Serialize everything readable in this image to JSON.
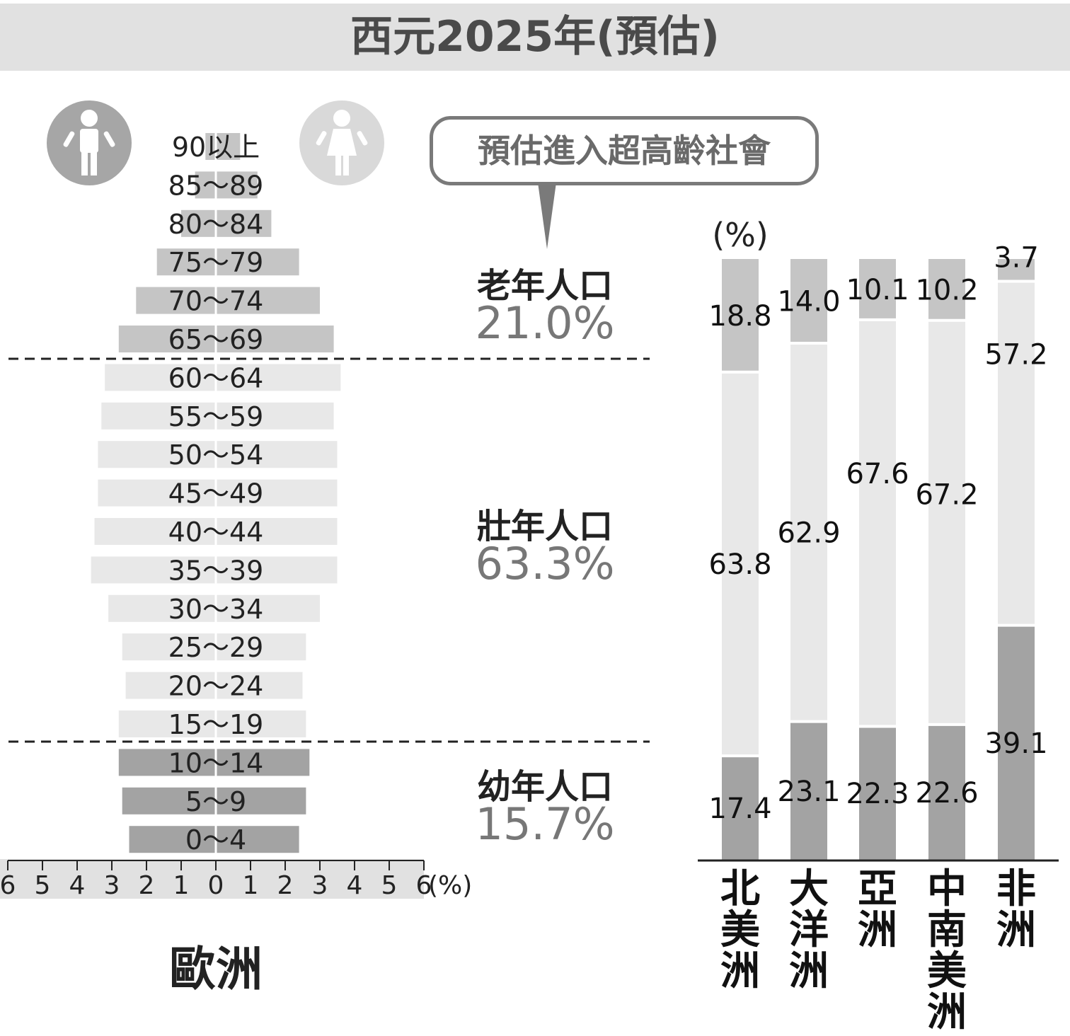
{
  "title": "西元2025年(預估)",
  "callout": "預估進入超高齡社會",
  "icons": {
    "male": {
      "name": "male-person-icon",
      "color": "#a6a6a6"
    },
    "female": {
      "name": "female-person-icon",
      "color": "#d9d9d9"
    }
  },
  "groups": [
    {
      "label": "老年人口",
      "value": "21.0%"
    },
    {
      "label": "壯年人口",
      "value": "63.3%"
    },
    {
      "label": "幼年人口",
      "value": "15.7%"
    }
  ],
  "colors": {
    "elderly": "#c5c5c5",
    "working": "#e8e8e8",
    "young": "#a3a3a3",
    "text_gray": "#777777"
  },
  "chart_data": [
    {
      "type": "bar",
      "subtype": "population-pyramid",
      "title": "歐洲",
      "categories": [
        "90以上",
        "85～89",
        "80～84",
        "75～79",
        "70～74",
        "65～69",
        "60～64",
        "55～59",
        "50～54",
        "45～49",
        "40～44",
        "35～39",
        "30～34",
        "25～29",
        "20～24",
        "15～19",
        "10～14",
        "5～9",
        "0～4"
      ],
      "series": [
        {
          "side": "left",
          "values": [
            0.3,
            0.6,
            1.0,
            1.7,
            2.3,
            2.8,
            3.2,
            3.3,
            3.4,
            3.4,
            3.5,
            3.6,
            3.1,
            2.7,
            2.6,
            2.8,
            2.8,
            2.7,
            2.5
          ]
        },
        {
          "side": "right",
          "values": [
            0.7,
            1.2,
            1.6,
            2.4,
            3.0,
            3.4,
            3.6,
            3.4,
            3.5,
            3.5,
            3.5,
            3.5,
            3.0,
            2.6,
            2.5,
            2.6,
            2.7,
            2.6,
            2.4
          ]
        }
      ],
      "group_of_category": [
        "elderly",
        "elderly",
        "elderly",
        "elderly",
        "elderly",
        "elderly",
        "working",
        "working",
        "working",
        "working",
        "working",
        "working",
        "working",
        "working",
        "working",
        "working",
        "young",
        "young",
        "young"
      ],
      "x_ticks": [
        "6",
        "5",
        "4",
        "3",
        "2",
        "1",
        "0",
        "1",
        "2",
        "3",
        "4",
        "5",
        "6"
      ],
      "x_unit": "(%)",
      "xlim": [
        -6,
        6
      ]
    },
    {
      "type": "bar",
      "subtype": "stacked-100-percent",
      "y_unit": "(%)",
      "categories": [
        "北美洲",
        "大洋洲",
        "亞洲",
        "中南美洲",
        "非洲"
      ],
      "series": [
        {
          "group": "young",
          "values": [
            17.4,
            23.1,
            22.3,
            22.6,
            39.1
          ]
        },
        {
          "group": "working",
          "values": [
            63.8,
            62.9,
            67.6,
            67.2,
            57.2
          ]
        },
        {
          "group": "elderly",
          "values": [
            18.8,
            14.0,
            10.1,
            10.2,
            3.7
          ]
        }
      ],
      "labels": [
        [
          "17.4",
          "63.8",
          "18.8"
        ],
        [
          "23.1",
          "62.9",
          "14.0"
        ],
        [
          "22.3",
          "67.6",
          "10.1"
        ],
        [
          "22.6",
          "67.2",
          "10.2"
        ],
        [
          "39.1",
          "57.2",
          "3.7"
        ]
      ],
      "ylim": [
        0,
        100
      ]
    }
  ]
}
